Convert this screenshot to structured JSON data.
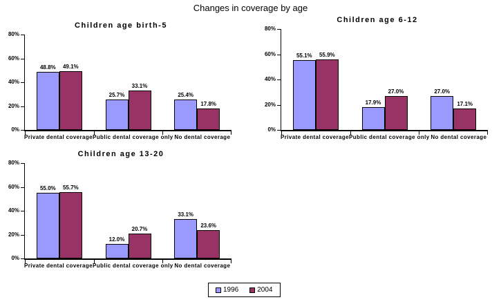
{
  "page": {
    "title": "Changes in coverage by age"
  },
  "legend": {
    "items": [
      {
        "label": "1996",
        "color": "#9999ff"
      },
      {
        "label": "2004",
        "color": "#993366"
      }
    ]
  },
  "chart_data": [
    {
      "type": "bar",
      "title": "Children age birth-5",
      "categories": [
        "Private dental coverage",
        "Public dental coverage only",
        "No dental coverage"
      ],
      "series": [
        {
          "name": "1996",
          "color": "#9999ff",
          "values": [
            48.8,
            25.7,
            25.4
          ]
        },
        {
          "name": "2004",
          "color": "#993366",
          "values": [
            49.1,
            33.1,
            17.8
          ]
        }
      ],
      "value_labels": [
        [
          "48.8%",
          "25.7%",
          "25.4%"
        ],
        [
          "49.1%",
          "33.1%",
          "17.8%"
        ]
      ],
      "xlabel": "",
      "ylabel": "",
      "ylim": [
        0,
        80
      ],
      "yticks": [
        0,
        20,
        40,
        60,
        80
      ],
      "ytick_labels": [
        "0%",
        "20%",
        "40%",
        "60%",
        "80%"
      ],
      "grid": false,
      "legend_position": "shared-bottom"
    },
    {
      "type": "bar",
      "title": "Children age 6-12",
      "categories": [
        "Private dental coverage",
        "Public dental coverage only",
        "No dental coverage"
      ],
      "series": [
        {
          "name": "1996",
          "color": "#9999ff",
          "values": [
            55.1,
            17.9,
            27.0
          ]
        },
        {
          "name": "2004",
          "color": "#993366",
          "values": [
            55.9,
            27.0,
            17.1
          ]
        }
      ],
      "value_labels": [
        [
          "55.1%",
          "17.9%",
          "27.0%"
        ],
        [
          "55.9%",
          "27.0%",
          "17.1%"
        ]
      ],
      "xlabel": "",
      "ylabel": "",
      "ylim": [
        0,
        80
      ],
      "yticks": [
        0,
        20,
        40,
        60,
        80
      ],
      "ytick_labels": [
        "0%",
        "20%",
        "40%",
        "60%",
        "80%"
      ],
      "grid": false,
      "legend_position": "shared-bottom"
    },
    {
      "type": "bar",
      "title": "Children age 13-20",
      "categories": [
        "Private dental coverage",
        "Public dental coverage only",
        "No dental coverage"
      ],
      "series": [
        {
          "name": "1996",
          "color": "#9999ff",
          "values": [
            55.0,
            12.0,
            33.1
          ]
        },
        {
          "name": "2004",
          "color": "#993366",
          "values": [
            55.7,
            20.7,
            23.6
          ]
        }
      ],
      "value_labels": [
        [
          "55.0%",
          "12.0%",
          "33.1%"
        ],
        [
          "55.7%",
          "20.7%",
          "23.6%"
        ]
      ],
      "xlabel": "",
      "ylabel": "",
      "ylim": [
        0,
        80
      ],
      "yticks": [
        0,
        20,
        40,
        60,
        80
      ],
      "ytick_labels": [
        "0%",
        "20%",
        "40%",
        "60%",
        "80%"
      ],
      "grid": false,
      "legend_position": "shared-bottom"
    }
  ]
}
